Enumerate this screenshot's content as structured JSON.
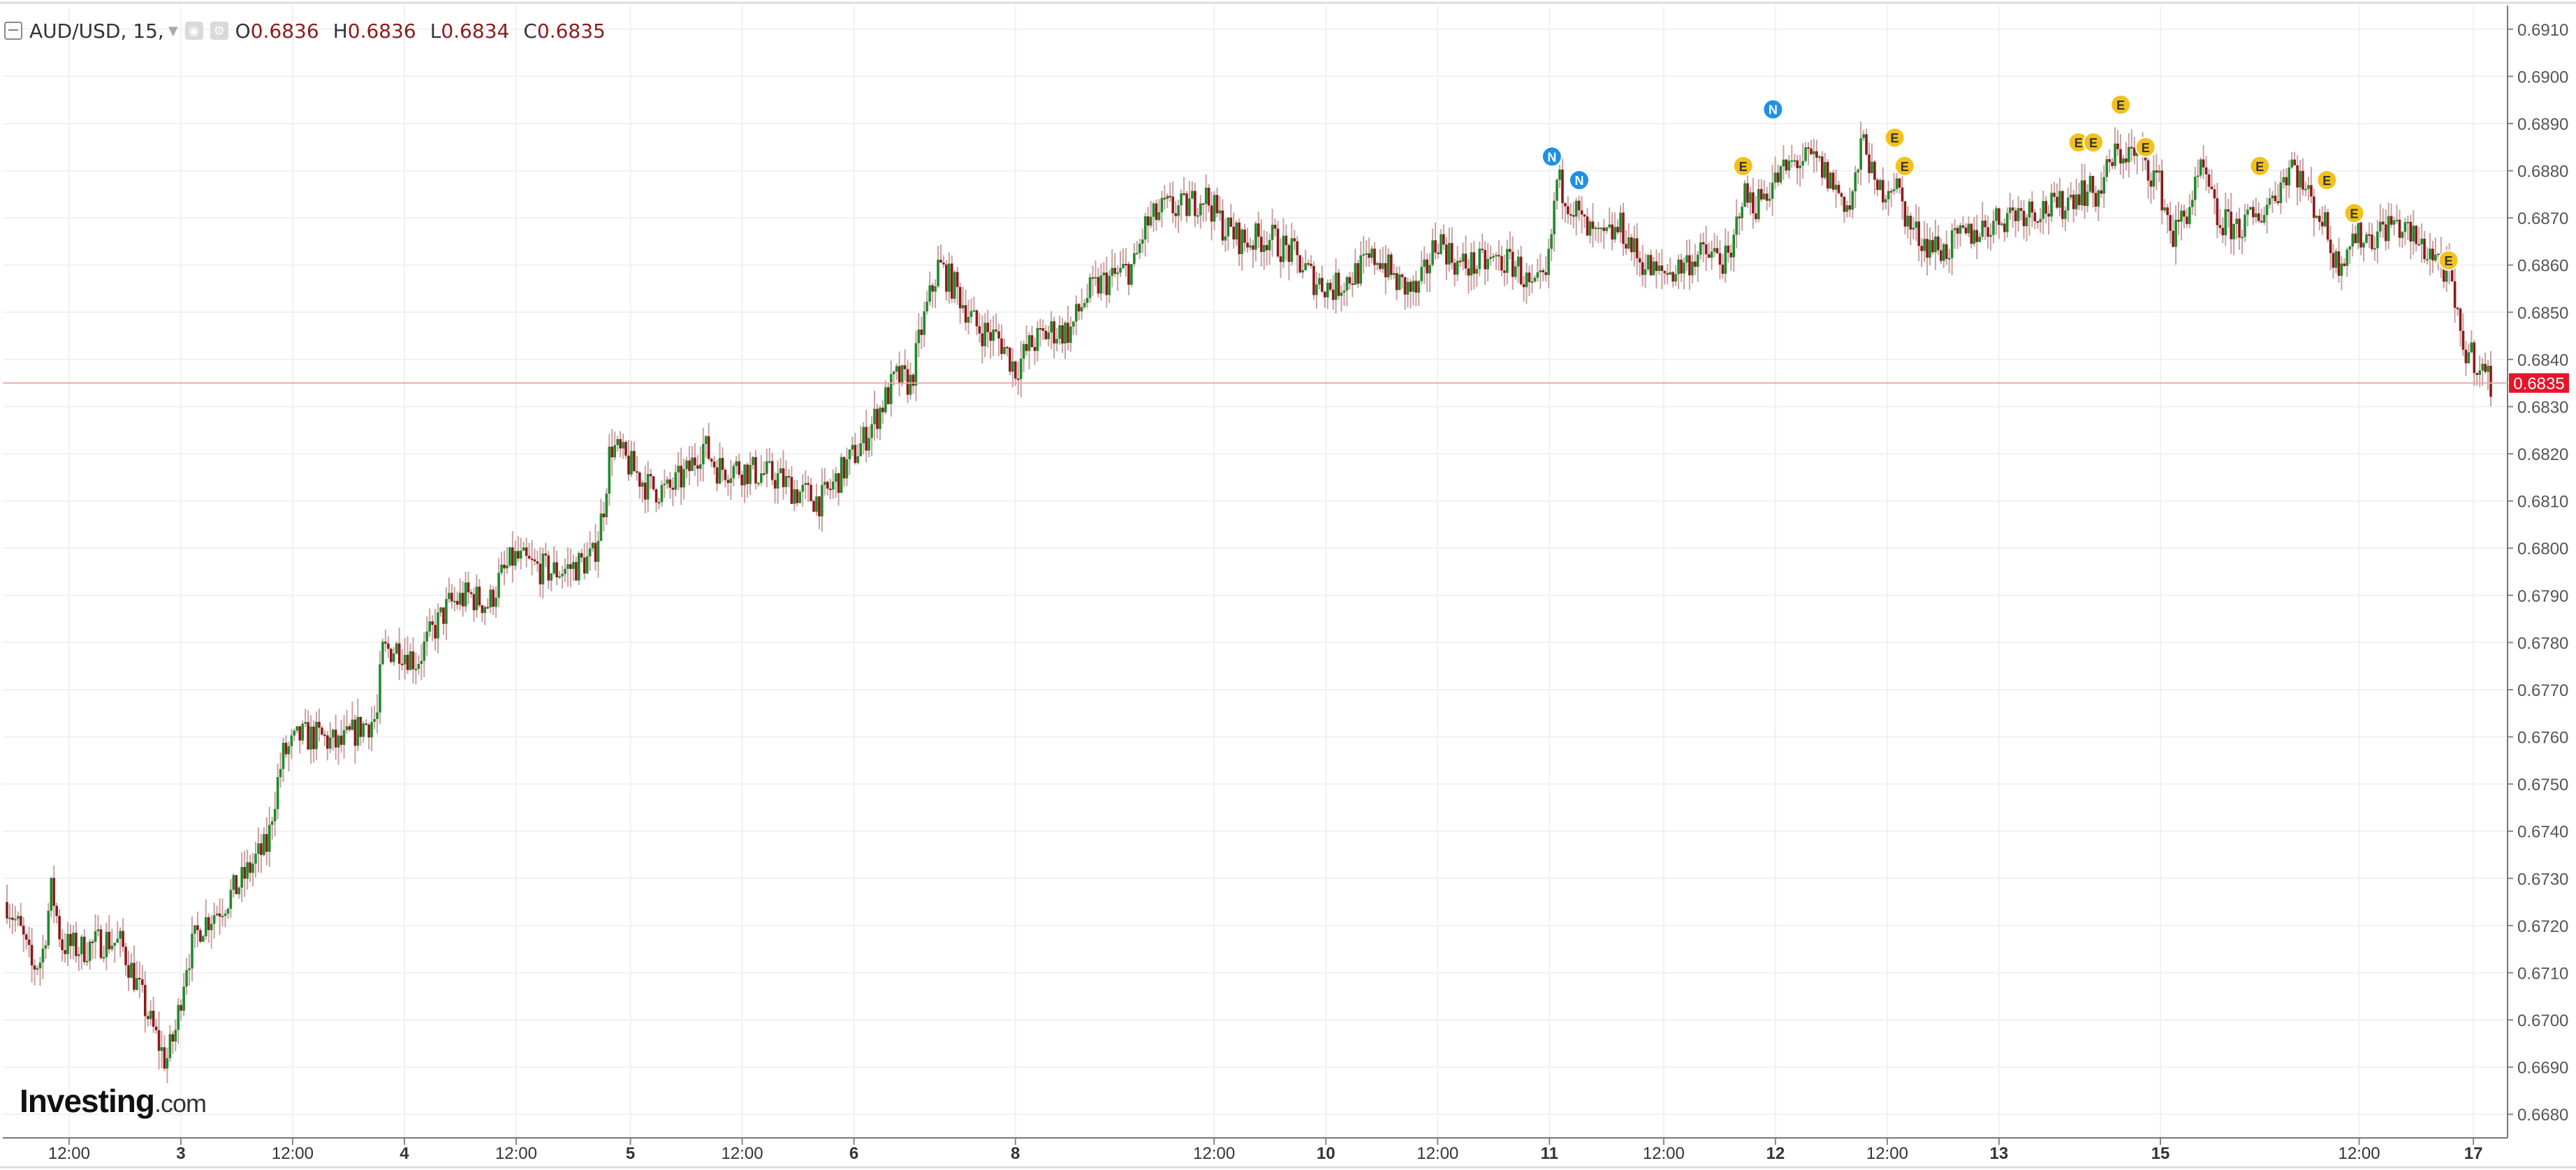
{
  "header": {
    "symbol": "AUD/USD, 15,",
    "open_label": "O",
    "open": "0.6836",
    "high_label": "H",
    "high": "0.6836",
    "low_label": "L",
    "low": "0.6834",
    "close_label": "C",
    "close": "0.6835"
  },
  "logo": {
    "name": "Investing",
    "suffix": ".com"
  },
  "colors": {
    "up": "#1f8a2a",
    "down": "#8b1a1a",
    "wick": "#c8a0a0",
    "grid": "#f1f1f1",
    "last_price_line": "#f2a7a7",
    "last_price_tag": "#e8132a",
    "event_e": "#f2c21b",
    "event_n": "#1e90e8",
    "axis_text": "#555555"
  },
  "chart_data": {
    "type": "candlestick",
    "symbol": "AUD/USD",
    "interval": "15",
    "y_range": [
      0.6675,
      0.6915
    ],
    "y_ticks": [
      "0.6910",
      "0.6900",
      "0.6890",
      "0.6880",
      "0.6870",
      "0.6860",
      "0.6850",
      "0.6840",
      "0.6830",
      "0.6820",
      "0.6810",
      "0.6800",
      "0.6790",
      "0.6780",
      "0.6770",
      "0.6760",
      "0.6750",
      "0.6740",
      "0.6730",
      "0.6720",
      "0.6710",
      "0.6700",
      "0.6690",
      "0.6680"
    ],
    "x_ticks": [
      {
        "label": "12:00",
        "bold": false,
        "t": 0.025
      },
      {
        "label": "3",
        "bold": true,
        "t": 0.07
      },
      {
        "label": "12:00",
        "bold": false,
        "t": 0.115
      },
      {
        "label": "4",
        "bold": true,
        "t": 0.16
      },
      {
        "label": "12:00",
        "bold": false,
        "t": 0.205
      },
      {
        "label": "5",
        "bold": true,
        "t": 0.251
      },
      {
        "label": "12:00",
        "bold": false,
        "t": 0.296
      },
      {
        "label": "6",
        "bold": true,
        "t": 0.341
      },
      {
        "label": "8",
        "bold": true,
        "t": 0.406
      },
      {
        "label": "12:00",
        "bold": false,
        "t": 0.486
      },
      {
        "label": "10",
        "bold": true,
        "t": 0.531
      },
      {
        "label": "12:00",
        "bold": false,
        "t": 0.576
      },
      {
        "label": "11",
        "bold": true,
        "t": 0.621
      },
      {
        "label": "12:00",
        "bold": false,
        "t": 0.667
      },
      {
        "label": "12",
        "bold": true,
        "t": 0.712
      },
      {
        "label": "12:00",
        "bold": false,
        "t": 0.757
      },
      {
        "label": "13",
        "bold": true,
        "t": 0.802
      },
      {
        "label": "15",
        "bold": true,
        "t": 0.867
      },
      {
        "label": "12:00",
        "bold": false,
        "t": 0.947
      },
      {
        "label": "17",
        "bold": true,
        "t": 0.993
      }
    ],
    "last_price": "0.6835",
    "price_path": [
      [
        0.0,
        0.6725
      ],
      [
        0.006,
        0.6718
      ],
      [
        0.01,
        0.6711
      ],
      [
        0.014,
        0.6713
      ],
      [
        0.018,
        0.6728
      ],
      [
        0.022,
        0.6716
      ],
      [
        0.03,
        0.6715
      ],
      [
        0.04,
        0.6717
      ],
      [
        0.046,
        0.6716
      ],
      [
        0.052,
        0.6708
      ],
      [
        0.058,
        0.6699
      ],
      [
        0.064,
        0.6691
      ],
      [
        0.068,
        0.6698
      ],
      [
        0.072,
        0.6712
      ],
      [
        0.078,
        0.672
      ],
      [
        0.086,
        0.6724
      ],
      [
        0.094,
        0.6729
      ],
      [
        0.1,
        0.6734
      ],
      [
        0.105,
        0.6737
      ],
      [
        0.107,
        0.6745
      ],
      [
        0.111,
        0.6756
      ],
      [
        0.118,
        0.676
      ],
      [
        0.126,
        0.676
      ],
      [
        0.134,
        0.6758
      ],
      [
        0.142,
        0.6762
      ],
      [
        0.149,
        0.6764
      ],
      [
        0.151,
        0.6778
      ],
      [
        0.158,
        0.6779
      ],
      [
        0.165,
        0.6776
      ],
      [
        0.171,
        0.6782
      ],
      [
        0.178,
        0.6788
      ],
      [
        0.186,
        0.679
      ],
      [
        0.194,
        0.6788
      ],
      [
        0.198,
        0.6793
      ],
      [
        0.204,
        0.6798
      ],
      [
        0.212,
        0.6796
      ],
      [
        0.22,
        0.6795
      ],
      [
        0.228,
        0.6796
      ],
      [
        0.236,
        0.6798
      ],
      [
        0.24,
        0.6808
      ],
      [
        0.243,
        0.6822
      ],
      [
        0.25,
        0.6818
      ],
      [
        0.258,
        0.6813
      ],
      [
        0.266,
        0.6812
      ],
      [
        0.274,
        0.6816
      ],
      [
        0.28,
        0.6822
      ],
      [
        0.286,
        0.6817
      ],
      [
        0.294,
        0.6817
      ],
      [
        0.302,
        0.6816
      ],
      [
        0.31,
        0.6815
      ],
      [
        0.318,
        0.6812
      ],
      [
        0.328,
        0.681
      ],
      [
        0.336,
        0.6816
      ],
      [
        0.344,
        0.6822
      ],
      [
        0.352,
        0.683
      ],
      [
        0.358,
        0.6836
      ],
      [
        0.364,
        0.6835
      ],
      [
        0.368,
        0.6846
      ],
      [
        0.375,
        0.686
      ],
      [
        0.382,
        0.6855
      ],
      [
        0.39,
        0.6847
      ],
      [
        0.4,
        0.6844
      ],
      [
        0.406,
        0.6838
      ],
      [
        0.412,
        0.6843
      ],
      [
        0.42,
        0.6846
      ],
      [
        0.428,
        0.6846
      ],
      [
        0.434,
        0.6853
      ],
      [
        0.44,
        0.6856
      ],
      [
        0.448,
        0.6858
      ],
      [
        0.454,
        0.686
      ],
      [
        0.458,
        0.6868
      ],
      [
        0.466,
        0.6872
      ],
      [
        0.474,
        0.6872
      ],
      [
        0.482,
        0.6875
      ],
      [
        0.49,
        0.6868
      ],
      [
        0.498,
        0.6865
      ],
      [
        0.508,
        0.6866
      ],
      [
        0.518,
        0.6862
      ],
      [
        0.526,
        0.6857
      ],
      [
        0.534,
        0.6855
      ],
      [
        0.542,
        0.6858
      ],
      [
        0.552,
        0.6862
      ],
      [
        0.56,
        0.6856
      ],
      [
        0.568,
        0.6854
      ],
      [
        0.576,
        0.6866
      ],
      [
        0.584,
        0.686
      ],
      [
        0.592,
        0.686
      ],
      [
        0.6,
        0.6861
      ],
      [
        0.608,
        0.686
      ],
      [
        0.614,
        0.6854
      ],
      [
        0.62,
        0.6857
      ],
      [
        0.624,
        0.6878
      ],
      [
        0.63,
        0.6873
      ],
      [
        0.636,
        0.6867
      ],
      [
        0.642,
        0.6865
      ],
      [
        0.65,
        0.6868
      ],
      [
        0.656,
        0.6862
      ],
      [
        0.664,
        0.6858
      ],
      [
        0.672,
        0.6859
      ],
      [
        0.68,
        0.6862
      ],
      [
        0.688,
        0.6862
      ],
      [
        0.694,
        0.686
      ],
      [
        0.698,
        0.6875
      ],
      [
        0.704,
        0.6873
      ],
      [
        0.712,
        0.6878
      ],
      [
        0.72,
        0.6882
      ],
      [
        0.728,
        0.6882
      ],
      [
        0.734,
        0.6878
      ],
      [
        0.742,
        0.6872
      ],
      [
        0.748,
        0.6888
      ],
      [
        0.752,
        0.6875
      ],
      [
        0.76,
        0.6878
      ],
      [
        0.766,
        0.6868
      ],
      [
        0.772,
        0.6865
      ],
      [
        0.78,
        0.6863
      ],
      [
        0.788,
        0.6866
      ],
      [
        0.796,
        0.6868
      ],
      [
        0.806,
        0.6871
      ],
      [
        0.816,
        0.6872
      ],
      [
        0.826,
        0.6872
      ],
      [
        0.834,
        0.6876
      ],
      [
        0.842,
        0.6875
      ],
      [
        0.848,
        0.6883
      ],
      [
        0.854,
        0.6884
      ],
      [
        0.86,
        0.6882
      ],
      [
        0.866,
        0.6878
      ],
      [
        0.872,
        0.6866
      ],
      [
        0.878,
        0.6872
      ],
      [
        0.884,
        0.688
      ],
      [
        0.89,
        0.6869
      ],
      [
        0.898,
        0.6868
      ],
      [
        0.906,
        0.687
      ],
      [
        0.914,
        0.6876
      ],
      [
        0.92,
        0.6882
      ],
      [
        0.926,
        0.6875
      ],
      [
        0.932,
        0.687
      ],
      [
        0.938,
        0.686
      ],
      [
        0.944,
        0.6866
      ],
      [
        0.952,
        0.6866
      ],
      [
        0.96,
        0.6869
      ],
      [
        0.966,
        0.6867
      ],
      [
        0.972,
        0.6864
      ],
      [
        0.978,
        0.6862
      ],
      [
        0.984,
        0.6856
      ],
      [
        0.988,
        0.6843
      ],
      [
        0.994,
        0.684
      ],
      [
        1.0,
        0.6835
      ]
    ],
    "events": [
      {
        "type": "N",
        "label": "N",
        "t": 0.622,
        "price": 0.6883
      },
      {
        "type": "N",
        "label": "N",
        "t": 0.633,
        "price": 0.6878
      },
      {
        "type": "N",
        "label": "N",
        "t": 0.711,
        "price": 0.6893
      },
      {
        "type": "E",
        "label": "E",
        "t": 0.699,
        "price": 0.6881
      },
      {
        "type": "E",
        "label": "E",
        "t": 0.76,
        "price": 0.6887
      },
      {
        "type": "E",
        "label": "E",
        "t": 0.764,
        "price": 0.6881
      },
      {
        "type": "E",
        "label": "E",
        "t": 0.834,
        "price": 0.6886
      },
      {
        "type": "E",
        "label": "E",
        "t": 0.84,
        "price": 0.6886
      },
      {
        "type": "E",
        "label": "E",
        "t": 0.851,
        "price": 0.6894
      },
      {
        "type": "E",
        "label": "E",
        "t": 0.861,
        "price": 0.6885
      },
      {
        "type": "E",
        "label": "E",
        "t": 0.907,
        "price": 0.6881
      },
      {
        "type": "E",
        "label": "E",
        "t": 0.934,
        "price": 0.6878
      },
      {
        "type": "E",
        "label": "E",
        "t": 0.945,
        "price": 0.6871
      },
      {
        "type": "E",
        "label": "E",
        "t": 0.983,
        "price": 0.6861
      }
    ]
  }
}
